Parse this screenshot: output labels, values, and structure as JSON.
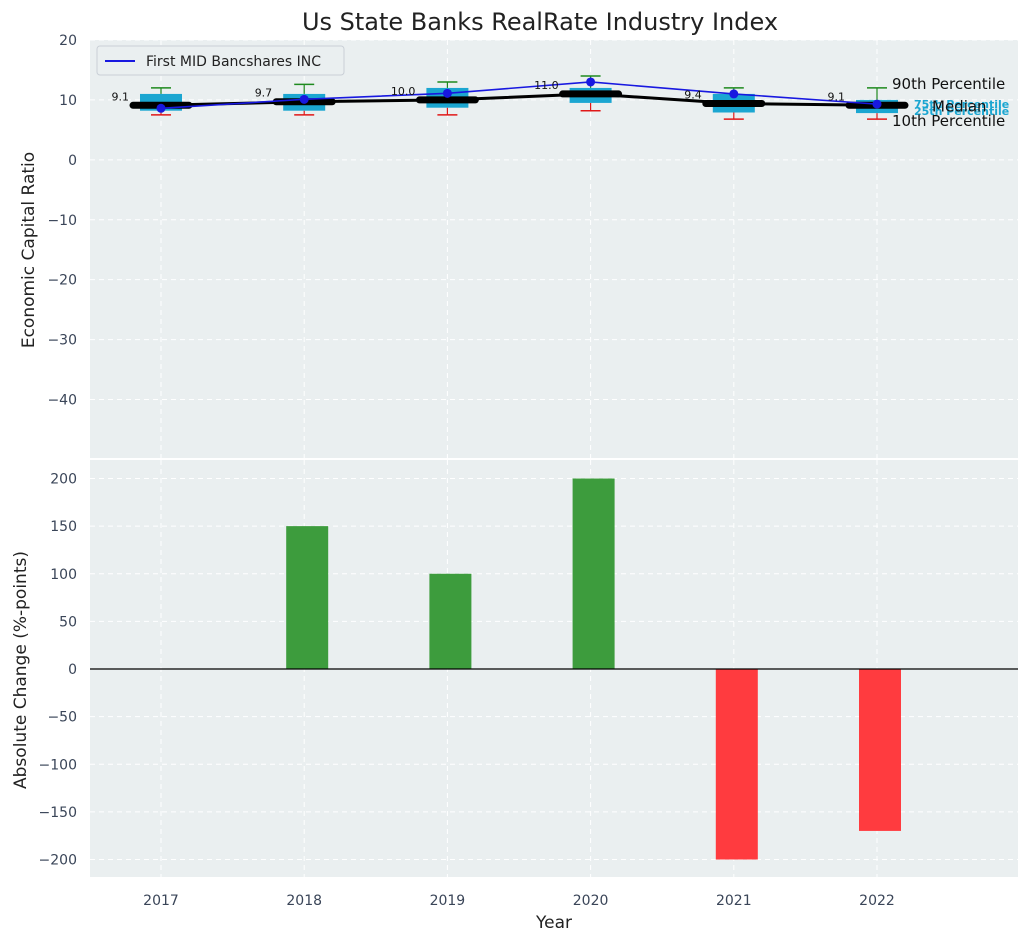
{
  "chart_data": [
    {
      "type": "box",
      "title": "Us State Banks RealRate Industry Index",
      "xlabel": "",
      "ylabel": "Economic Capital Ratio",
      "ylim": [
        -50,
        20
      ],
      "yticks": [
        20,
        10,
        0,
        -10,
        -20,
        -30,
        -40
      ],
      "categories": [
        "2017",
        "2018",
        "2019",
        "2020",
        "2021",
        "2022"
      ],
      "p10": [
        7.5,
        7.5,
        7.5,
        8.2,
        6.8,
        6.8
      ],
      "p25": [
        8.2,
        8.2,
        8.7,
        9.5,
        7.9,
        7.8
      ],
      "median": [
        9.1,
        9.7,
        10.0,
        11.0,
        9.4,
        9.1
      ],
      "p75": [
        11.0,
        11.0,
        12.0,
        12.0,
        11.0,
        10.0
      ],
      "p90": [
        12.0,
        12.6,
        13.0,
        14.0,
        12.0,
        12.0
      ],
      "median_labels": [
        "9.1",
        "9.7",
        "10.0",
        "11.0",
        "9.4",
        "9.1"
      ],
      "series": [
        {
          "name": "First MID Bancshares INC",
          "values": [
            8.6,
            10.1,
            11.1,
            13.0,
            11.0,
            9.3
          ]
        }
      ],
      "legend": "top-left",
      "annotations": {
        "p90": "90th Percentile",
        "p75": "75th Percentile",
        "median": "Median",
        "p25": "25th Percentile",
        "p10": "10th Percentile"
      },
      "colors": {
        "background": "#eaeff0",
        "box": "#1ba6d1",
        "line": "#1818e0",
        "median": "#000000",
        "whisker_high": "#1e8a1e",
        "whisker_low": "#e01818"
      }
    },
    {
      "type": "bar",
      "xlabel": "Year",
      "ylabel": "Absolute Change (%-points)",
      "ylim": [
        -218,
        218
      ],
      "yticks": [
        200,
        150,
        100,
        50,
        0,
        -50,
        -100,
        -150,
        -200
      ],
      "categories": [
        "2017",
        "2018",
        "2019",
        "2020",
        "2021",
        "2022"
      ],
      "values": [
        0,
        150,
        100,
        200,
        -200,
        -170
      ],
      "colors": {
        "positive": "#3d9c3d",
        "negative": "#ff3b3f"
      }
    }
  ]
}
